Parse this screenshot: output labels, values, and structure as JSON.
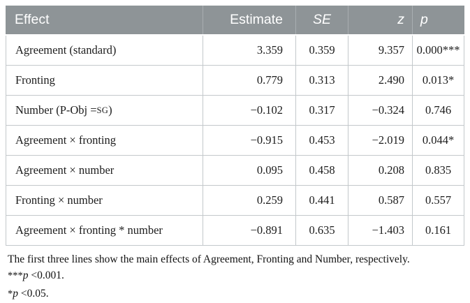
{
  "table": {
    "headers": {
      "effect": "Effect",
      "estimate": "Estimate",
      "se": "SE",
      "z": "z",
      "p": "p"
    },
    "rows": [
      {
        "effect": "Agreement (standard)",
        "estimate": "3.359",
        "se": "0.359",
        "z": "9.357",
        "p": "0.000***"
      },
      {
        "effect": "Fronting",
        "estimate": "0.779",
        "se": "0.313",
        "z": "2.490",
        "p": "0.013*"
      },
      {
        "effect_prefix": "Number (P-Obj = ",
        "effect_sc": "SG",
        "effect_suffix": ")",
        "estimate": "−0.102",
        "se": "0.317",
        "z": "−0.324",
        "p": "0.746"
      },
      {
        "effect": "Agreement × fronting",
        "estimate": "−0.915",
        "se": "0.453",
        "z": "−2.019",
        "p": "0.044*"
      },
      {
        "effect": "Agreement × number",
        "estimate": "0.095",
        "se": "0.458",
        "z": "0.208",
        "p": "0.835"
      },
      {
        "effect": "Fronting × number",
        "estimate": "0.259",
        "se": "0.441",
        "z": "0.587",
        "p": "0.557"
      },
      {
        "effect": "Agreement × fronting * number",
        "estimate": "−0.891",
        "se": "0.635",
        "z": "−1.403",
        "p": "0.161"
      }
    ]
  },
  "notes": {
    "line1": "The first three lines show the main effects of Agreement, Fronting and Number, respectively.",
    "sig1": {
      "stars": "***",
      "p": "p",
      "rest": " <0.001."
    },
    "sig2": {
      "stars": "*",
      "p": "p",
      "rest": " <0.05."
    }
  },
  "colors": {
    "header_bg": "#8e9497",
    "header_text": "#ffffff",
    "header_divider": "#a9aeb1",
    "body_border": "#c3c8cb",
    "body_text": "#1c1c1c"
  }
}
